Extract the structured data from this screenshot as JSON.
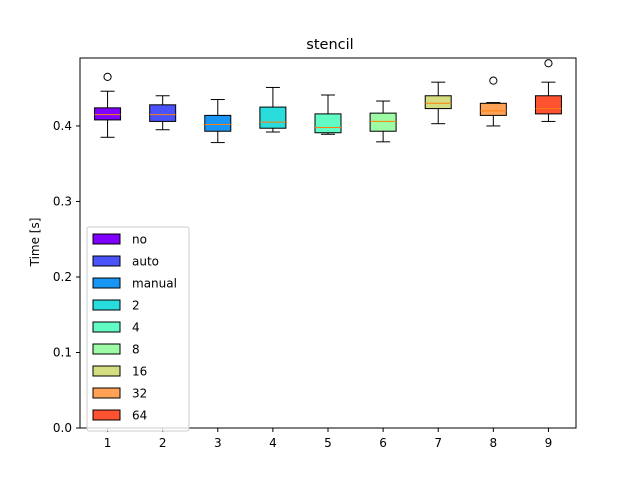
{
  "chart_data": {
    "type": "boxplot",
    "title": "stencil",
    "xlabel": "",
    "ylabel": "Time [s]",
    "ylim": [
      0,
      0.49
    ],
    "xlim": [
      0.5,
      9.5
    ],
    "grid": false,
    "legend_position": "lower-left",
    "categories": [
      "1",
      "2",
      "3",
      "4",
      "5",
      "6",
      "7",
      "8",
      "9"
    ],
    "y_ticks": [
      "0.0",
      "0.1",
      "0.2",
      "0.3",
      "0.4"
    ],
    "y_tick_values": [
      0.0,
      0.1,
      0.2,
      0.3,
      0.4
    ],
    "series": [
      {
        "name": "no",
        "color": "#8000ff",
        "whisker_low": 0.385,
        "q1": 0.408,
        "median": 0.415,
        "q3": 0.424,
        "whisker_high": 0.446,
        "outliers": [
          0.465
        ]
      },
      {
        "name": "auto",
        "color": "#4a53f9",
        "whisker_low": 0.395,
        "q1": 0.406,
        "median": 0.415,
        "q3": 0.428,
        "whisker_high": 0.44,
        "outliers": []
      },
      {
        "name": "manual",
        "color": "#1996f3",
        "whisker_low": 0.378,
        "q1": 0.393,
        "median": 0.402,
        "q3": 0.414,
        "whisker_high": 0.435,
        "outliers": []
      },
      {
        "name": "2",
        "color": "#2adddd",
        "whisker_low": 0.392,
        "q1": 0.397,
        "median": 0.405,
        "q3": 0.425,
        "whisker_high": 0.451,
        "outliers": []
      },
      {
        "name": "4",
        "color": "#62fbc4",
        "whisker_low": 0.389,
        "q1": 0.391,
        "median": 0.398,
        "q3": 0.416,
        "whisker_high": 0.441,
        "outliers": []
      },
      {
        "name": "8",
        "color": "#9cfba4",
        "whisker_low": 0.379,
        "q1": 0.393,
        "median": 0.406,
        "q3": 0.417,
        "whisker_high": 0.433,
        "outliers": []
      },
      {
        "name": "16",
        "color": "#d4dd80",
        "whisker_low": 0.403,
        "q1": 0.423,
        "median": 0.43,
        "q3": 0.44,
        "whisker_high": 0.458,
        "outliers": []
      },
      {
        "name": "32",
        "color": "#ffa256",
        "whisker_low": 0.4,
        "q1": 0.414,
        "median": 0.42,
        "q3": 0.43,
        "whisker_high": 0.431,
        "outliers": [
          0.46
        ]
      },
      {
        "name": "64",
        "color": "#ff5230",
        "whisker_low": 0.406,
        "q1": 0.416,
        "median": 0.423,
        "q3": 0.44,
        "whisker_high": 0.458,
        "outliers": [
          0.483
        ]
      }
    ],
    "median_color": "#ff7f0e"
  }
}
